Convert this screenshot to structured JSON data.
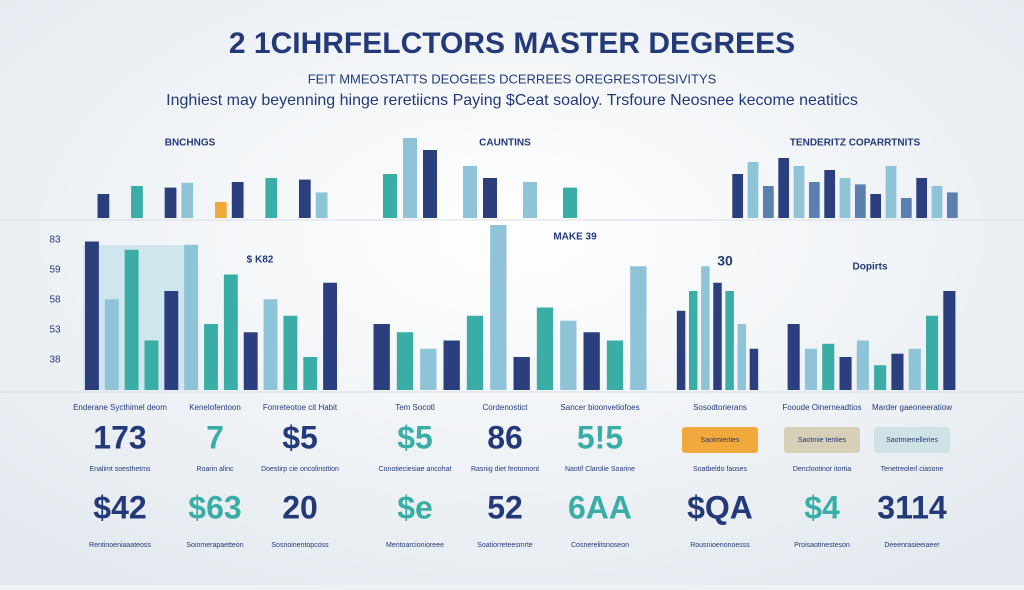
{
  "title": "2 1CIHRFELCTORS MASTER DEGREES",
  "subtitle": "FEIT MMEOSTATTS DEOGEES DCERREES OREGRESTOESIVITYS",
  "tagline": "Inghiest may beyenning hinge reretiicns Paying $Ceat soaloy. Trsfoure Neosnee kecome neatitics",
  "top_panels": [
    {
      "label": "BNCHNGS",
      "colors": [
        "#2b3f7e",
        "#8fc3d8",
        "#3aaea6",
        "#f2a93b"
      ],
      "bars": [
        30,
        0,
        40,
        0,
        38,
        44,
        0,
        20,
        45,
        0,
        50,
        0,
        48,
        32
      ]
    },
    {
      "label": "CAUNTINS",
      "colors": [
        "#3aaea6",
        "#8fc3d8",
        "#2b3f7e"
      ],
      "bars": [
        55,
        100,
        85,
        0,
        65,
        50,
        0,
        45,
        0,
        38
      ]
    },
    {
      "label": "TENDERITZ COPARRTNITS",
      "colors": [
        "#2b3f7e",
        "#8fc3d8",
        "#5a7fb0"
      ],
      "bars": [
        55,
        70,
        40,
        75,
        65,
        45,
        60,
        50,
        42,
        30,
        65,
        25,
        50,
        40,
        32
      ]
    }
  ],
  "axis_labels": [
    "83",
    "59",
    "58",
    "53",
    "38"
  ],
  "mid_panels": [
    {
      "label": "$ K82",
      "colors": [
        "#2b3f7e",
        "#8fc3d8",
        "#3aaea6",
        "#3aaea6"
      ],
      "bars": [
        90,
        55,
        85,
        30,
        60,
        88,
        40,
        70,
        35,
        55,
        45,
        20,
        65
      ]
    },
    {
      "label": "MAKE 39",
      "colors": [
        "#2b3f7e",
        "#3aaea6",
        "#8fc3d8"
      ],
      "bars": [
        40,
        35,
        25,
        30,
        45,
        100,
        20,
        50,
        42,
        35,
        30,
        75
      ]
    },
    {
      "label": "30",
      "colors": [
        "#2b3f7e",
        "#3aaea6",
        "#8fc3d8"
      ],
      "bars": [
        48,
        60,
        75,
        65,
        60,
        40,
        25
      ]
    },
    {
      "label": "Dopirts",
      "colors": [
        "#2b3f7e",
        "#8fc3d8",
        "#3aaea6"
      ],
      "bars": [
        40,
        25,
        28,
        20,
        30,
        15,
        22,
        25,
        45,
        60
      ]
    }
  ],
  "stats_row1": [
    {
      "caption": "Enderane Sycthimel deom",
      "value": "173",
      "note": "Enalimt soesthetms"
    },
    {
      "caption": "Kenelofentoon",
      "value": "7",
      "note": "Roarin alinc"
    },
    {
      "caption": "Fonreteotoe cit Habit",
      "value": "$5",
      "note": "Doestirp cie oncolinsttion"
    },
    {
      "caption": "Tem Socotl",
      "value": "$5",
      "note": "Conotieciesiae ancohat"
    },
    {
      "caption": "Cordenostict",
      "value": "86",
      "note": "Rasnig diet feotomont"
    },
    {
      "caption": "Sancer bioonvetiofoes",
      "value": "5!5",
      "note": "Naotif Clarolie Soarine"
    },
    {
      "caption": "Sosodtorierans",
      "box_text": "Saotmierties",
      "box_color": "#f2a93b",
      "note": "Soatbeldo faoses"
    },
    {
      "caption": "Fooude Oinerneadtios",
      "box_text": "Saotmie tenties",
      "box_color": "#d8cfb8",
      "note": "Denclootinor itortia"
    },
    {
      "caption": "Marder gaeoneeratiow",
      "box_text": "Saotmienelleries",
      "box_color": "#cfe3e6",
      "note": "Tenetreolerl ciasone"
    }
  ],
  "stats_row2": [
    {
      "value": "$42",
      "note": "Rentinoeniaaateoss"
    },
    {
      "value": "$63",
      "note": "Soinmerapaetteon"
    },
    {
      "value": "20",
      "note": "Sosnoinentopcoss"
    },
    {
      "value": "$e",
      "note": "Mentoarcionioreee"
    },
    {
      "value": "52",
      "note": "Soatiorreteesmrte"
    },
    {
      "value": "6AA",
      "note": "Cosnerelitsnoseon"
    },
    {
      "value": "$QA",
      "note": "Rousnioenonoesss"
    },
    {
      "value": "$4",
      "note": "Proisaotinesteson"
    },
    {
      "value": "3114",
      "note": "Deeenrasieeiaeer"
    }
  ]
}
